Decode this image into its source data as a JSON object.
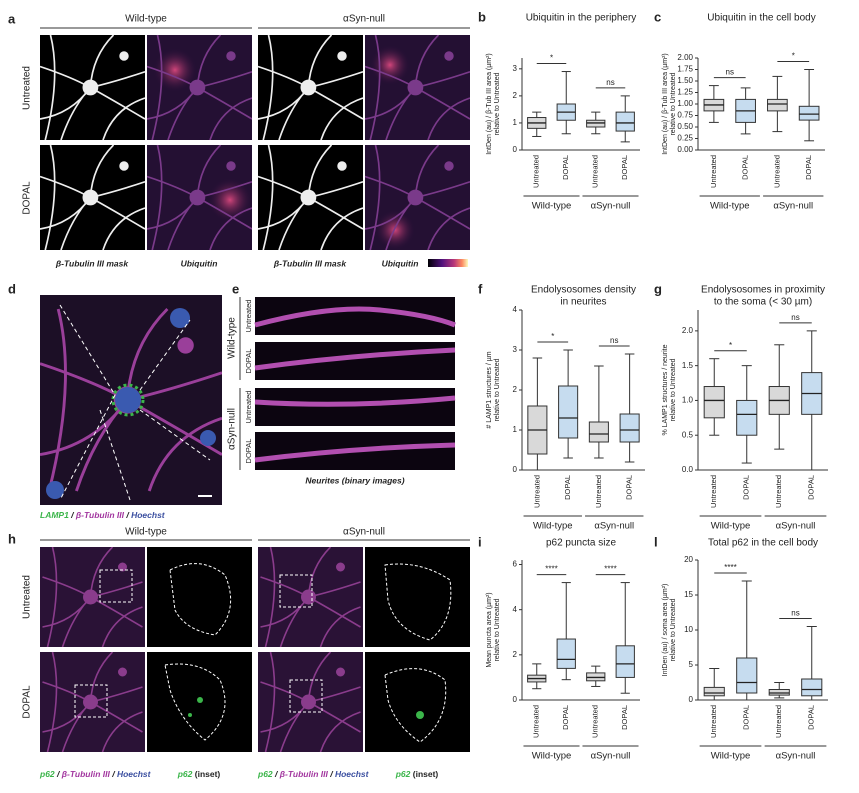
{
  "figure": {
    "a": {
      "label": "a",
      "columns": [
        "Wild-type",
        "αSyn-null"
      ],
      "rows": [
        "Untreated",
        "DOPAL"
      ],
      "captions": [
        "β-Tubulin III mask",
        "Ubiquitin",
        "β-Tubulin III mask",
        "Ubiquitin"
      ]
    },
    "d": {
      "label": "d",
      "caption": [
        "LAMP1",
        " / ",
        "β-Tubulin III",
        " / ",
        "Hoechst"
      ]
    },
    "e": {
      "label": "e",
      "groups": [
        "Wild-type",
        "αSyn-null"
      ],
      "rows": [
        "Untreated",
        "DOPAL",
        "Untreated",
        "DOPAL"
      ],
      "caption": "Neurites (binary images)"
    },
    "h": {
      "label": "h",
      "columns": [
        "Wild-type",
        "αSyn-null"
      ],
      "rows": [
        "Untreated",
        "DOPAL"
      ],
      "captions": [
        [
          "p62",
          " / ",
          "β-Tubulin III",
          " / ",
          "Hoechst"
        ],
        [
          "p62",
          " (inset)"
        ],
        [
          "p62",
          " / ",
          "β-Tubulin III",
          " / ",
          "Hoechst"
        ],
        [
          "p62",
          " (inset)"
        ]
      ]
    }
  },
  "chart_data": [
    {
      "type": "box",
      "label": "b",
      "title": [
        "Ubiquitin in the periphery"
      ],
      "ylabel": [
        "IntDen (au) / β-Tub III area (µm²)",
        "relative to Untreated"
      ],
      "categories": [
        "Untreated",
        "DOPAL",
        "Untreated",
        "DOPAL"
      ],
      "groups": [
        "Wild-type",
        "αSyn-null"
      ],
      "colors": [
        "#d9d9d9",
        "#c6dcef",
        "#d9d9d9",
        "#c6dcef"
      ],
      "boxes": [
        {
          "min": 0.5,
          "q1": 0.8,
          "median": 1.0,
          "q3": 1.2,
          "max": 1.4
        },
        {
          "min": 0.6,
          "q1": 1.1,
          "median": 1.4,
          "q3": 1.7,
          "max": 2.9
        },
        {
          "min": 0.6,
          "q1": 0.85,
          "median": 1.0,
          "q3": 1.1,
          "max": 1.4
        },
        {
          "min": 0.3,
          "q1": 0.7,
          "median": 1.0,
          "q3": 1.4,
          "max": 2.0
        }
      ],
      "comparisons": [
        {
          "pair": [
            0,
            1
          ],
          "label": "*"
        },
        {
          "pair": [
            2,
            3
          ],
          "label": "ns"
        }
      ],
      "ylim": [
        0,
        3.4
      ],
      "yticks": [
        0,
        1,
        2,
        3
      ]
    },
    {
      "type": "box",
      "label": "c",
      "title": [
        "Ubiquitin in the cell body"
      ],
      "ylabel": [
        "IntDen (au) / β-Tub III area (µm²)",
        "relative to Untreated"
      ],
      "categories": [
        "Untreated",
        "DOPAL",
        "Untreated",
        "DOPAL"
      ],
      "groups": [
        "Wild-type",
        "αSyn-null"
      ],
      "colors": [
        "#d9d9d9",
        "#c6dcef",
        "#d9d9d9",
        "#c6dcef"
      ],
      "boxes": [
        {
          "min": 0.6,
          "q1": 0.85,
          "median": 0.98,
          "q3": 1.1,
          "max": 1.4
        },
        {
          "min": 0.35,
          "q1": 0.6,
          "median": 0.85,
          "q3": 1.1,
          "max": 1.35
        },
        {
          "min": 0.4,
          "q1": 0.85,
          "median": 1.0,
          "q3": 1.1,
          "max": 1.6
        },
        {
          "min": 0.2,
          "q1": 0.65,
          "median": 0.78,
          "q3": 0.95,
          "max": 1.75
        }
      ],
      "comparisons": [
        {
          "pair": [
            0,
            1
          ],
          "label": "ns"
        },
        {
          "pair": [
            2,
            3
          ],
          "label": "*"
        }
      ],
      "ylim": [
        0,
        2
      ],
      "yticks": [
        {
          "value": 0,
          "label": "0.00"
        },
        0.25,
        {
          "value": 0.5,
          "label": "0.50"
        },
        0.75,
        {
          "value": 1,
          "label": "1.00"
        },
        1.25,
        {
          "value": 1.5,
          "label": "1.50"
        },
        1.75,
        {
          "value": 2,
          "label": "2.00"
        }
      ]
    },
    {
      "type": "box",
      "label": "f",
      "title": [
        "Endolysosomes density",
        "in neurites"
      ],
      "ylabel": [
        "# LAMP1 structures / µm",
        "relative to Untreated"
      ],
      "categories": [
        "Untreated",
        "DOPAL",
        "Untreated",
        "DOPAL"
      ],
      "groups": [
        "Wild-type",
        "αSyn-null"
      ],
      "colors": [
        "#d9d9d9",
        "#c6dcef",
        "#d9d9d9",
        "#c6dcef"
      ],
      "boxes": [
        {
          "min": 0,
          "q1": 0.4,
          "median": 1.0,
          "q3": 1.6,
          "max": 2.8
        },
        {
          "min": 0.3,
          "q1": 0.8,
          "median": 1.3,
          "q3": 2.1,
          "max": 3.0
        },
        {
          "min": 0.3,
          "q1": 0.7,
          "median": 0.9,
          "q3": 1.2,
          "max": 2.6
        },
        {
          "min": 0.2,
          "q1": 0.7,
          "median": 1.0,
          "q3": 1.4,
          "max": 2.9
        }
      ],
      "comparisons": [
        {
          "pair": [
            0,
            1
          ],
          "label": "*"
        },
        {
          "pair": [
            2,
            3
          ],
          "label": "ns"
        }
      ],
      "ylim": [
        0,
        4
      ],
      "yticks": [
        0,
        1,
        2,
        3,
        4
      ]
    },
    {
      "type": "box",
      "label": "g",
      "title": [
        "Endolysosomes in proximity",
        "to the soma (< 30 µm)"
      ],
      "ylabel": [
        "% LAMP1 structures / neurite",
        "relative to Untreated"
      ],
      "categories": [
        "Untreated",
        "DOPAL",
        "Untreated",
        "DOPAL"
      ],
      "groups": [
        "Wild-type",
        "αSyn-null"
      ],
      "colors": [
        "#d9d9d9",
        "#c6dcef",
        "#d9d9d9",
        "#c6dcef"
      ],
      "boxes": [
        {
          "min": 0.5,
          "q1": 0.75,
          "median": 1.0,
          "q3": 1.2,
          "max": 1.6
        },
        {
          "min": 0.1,
          "q1": 0.5,
          "median": 0.8,
          "q3": 1.0,
          "max": 1.5
        },
        {
          "min": 0.3,
          "q1": 0.8,
          "median": 1.0,
          "q3": 1.2,
          "max": 1.8
        },
        {
          "min": 0,
          "q1": 0.8,
          "median": 1.1,
          "q3": 1.4,
          "max": 2.0
        }
      ],
      "comparisons": [
        {
          "pair": [
            0,
            1
          ],
          "label": "*"
        },
        {
          "pair": [
            2,
            3
          ],
          "label": "ns"
        }
      ],
      "ylim": [
        0,
        2.3
      ],
      "yticks": [
        {
          "value": 0,
          "label": "0.0"
        },
        0.5,
        {
          "value": 1,
          "label": "1.0"
        },
        1.5,
        {
          "value": 2,
          "label": "2.0"
        }
      ]
    },
    {
      "type": "box",
      "label": "i",
      "title": [
        "p62 puncta size"
      ],
      "ylabel": [
        "Mean puncta area (µm²)",
        "relative to Untreated"
      ],
      "categories": [
        "Untreated",
        "DOPAL",
        "Untreated",
        "DOPAL"
      ],
      "groups": [
        "Wild-type",
        "αSyn-null"
      ],
      "colors": [
        "#d9d9d9",
        "#c6dcef",
        "#d9d9d9",
        "#c6dcef"
      ],
      "boxes": [
        {
          "min": 0.5,
          "q1": 0.8,
          "median": 0.95,
          "q3": 1.1,
          "max": 1.6
        },
        {
          "min": 0.9,
          "q1": 1.4,
          "median": 1.8,
          "q3": 2.7,
          "max": 5.2
        },
        {
          "min": 0.6,
          "q1": 0.85,
          "median": 1.0,
          "q3": 1.2,
          "max": 1.5
        },
        {
          "min": 0.3,
          "q1": 1.0,
          "median": 1.6,
          "q3": 2.4,
          "max": 5.2
        }
      ],
      "comparisons": [
        {
          "pair": [
            0,
            1
          ],
          "label": "****"
        },
        {
          "pair": [
            2,
            3
          ],
          "label": "****"
        }
      ],
      "ylim": [
        0,
        6.2
      ],
      "yticks": [
        0,
        2,
        4,
        6
      ]
    },
    {
      "type": "box",
      "label": "l",
      "title": [
        "Total p62 in the cell body"
      ],
      "ylabel": [
        "IntDen (au) / soma area (µm²)",
        "relative to Untreated"
      ],
      "categories": [
        "Untreated",
        "DOPAL",
        "Untreated",
        "DOPAL"
      ],
      "groups": [
        "Wild-type",
        "αSyn-null"
      ],
      "colors": [
        "#d9d9d9",
        "#c6dcef",
        "#d9d9d9",
        "#c6dcef"
      ],
      "boxes": [
        {
          "min": 0,
          "q1": 0.6,
          "median": 1.0,
          "q3": 1.8,
          "max": 4.5
        },
        {
          "min": 0,
          "q1": 1.0,
          "median": 2.5,
          "q3": 6.0,
          "max": 17
        },
        {
          "min": 0.3,
          "q1": 0.7,
          "median": 1.0,
          "q3": 1.5,
          "max": 2.5
        },
        {
          "min": 0,
          "q1": 0.6,
          "median": 1.5,
          "q3": 3.0,
          "max": 10.5
        }
      ],
      "comparisons": [
        {
          "pair": [
            0,
            1
          ],
          "label": "****"
        },
        {
          "pair": [
            2,
            3
          ],
          "label": "ns"
        }
      ],
      "ylim": [
        0,
        20
      ],
      "yticks": [
        0,
        5,
        10,
        15,
        20
      ]
    }
  ]
}
